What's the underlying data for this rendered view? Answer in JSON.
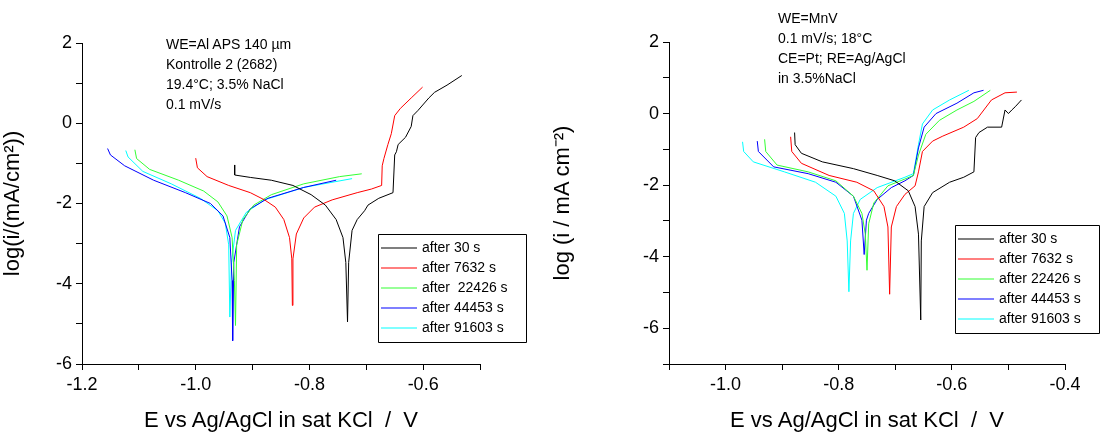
{
  "chart_data": [
    {
      "type": "line",
      "xlabel": "E vs Ag/AgCl in sat KCl  /  V",
      "ylabel": "log(i/(mA/cm²))",
      "xlim": [
        -1.2,
        -0.5
      ],
      "xticks": [
        -1.2,
        {
          "value": -1.1,
          "label": null
        },
        {
          "value": -1,
          "label": "-1.0"
        },
        {
          "value": -0.9,
          "label": null
        },
        -0.8,
        {
          "value": -0.7,
          "label": null
        },
        -0.6,
        {
          "value": -0.5,
          "label": null
        }
      ],
      "ylim": [
        -6,
        2
      ],
      "yticks": [
        -6,
        {
          "value": -5,
          "label": null
        },
        -4,
        {
          "value": -3,
          "label": null
        },
        -2,
        {
          "value": -1,
          "label": null
        },
        0,
        {
          "value": 1,
          "label": null
        },
        2
      ],
      "legend": "bottom right",
      "annotations": [
        "WE=Al APS 140 µm",
        "Kontrolle 2 (2682)",
        "19.4°C; 3.5% NaCl",
        "0.1 mV/s"
      ],
      "series": [
        {
          "name": "after 30 s",
          "color": "#000000",
          "x": [
            -0.9315,
            -0.9315,
            -0.904,
            -0.867,
            -0.829,
            -0.797,
            -0.772,
            -0.753,
            -0.741,
            -0.736,
            -0.733,
            -0.731,
            -0.725,
            -0.716,
            -0.703,
            -0.697,
            -0.678,
            -0.653,
            -0.65,
            -0.647,
            -0.644,
            -0.631,
            -0.621,
            -0.618,
            -0.609,
            -0.59,
            -0.58,
            -0.558,
            -0.532
          ],
          "values": [
            -1.04,
            -1.29,
            -1.35,
            -1.42,
            -1.55,
            -1.78,
            -2.04,
            -2.4,
            -2.85,
            -3.47,
            -4.95,
            -3.47,
            -2.67,
            -2.4,
            -2.18,
            -2.04,
            -1.87,
            -1.73,
            -0.79,
            -0.71,
            -0.53,
            -0.35,
            -0.08,
            0.19,
            0.32,
            0.63,
            0.77,
            0.95,
            1.19
          ]
        },
        {
          "name": "after 7632 s",
          "color": "#ff0000",
          "x": [
            -1.0,
            -0.997,
            -0.98,
            -0.942,
            -0.904,
            -0.879,
            -0.86,
            -0.845,
            -0.835,
            -0.831,
            -0.83,
            -0.829,
            -0.823,
            -0.81,
            -0.791,
            -0.76,
            -0.716,
            -0.691,
            -0.673,
            -0.672,
            -0.669,
            -0.662,
            -0.656,
            -0.65,
            -0.64,
            -0.621,
            -0.601
          ],
          "values": [
            -0.87,
            -1.11,
            -1.33,
            -1.55,
            -1.73,
            -1.91,
            -2.09,
            -2.4,
            -2.85,
            -3.38,
            -4.54,
            -3.38,
            -2.76,
            -2.36,
            -2.09,
            -1.91,
            -1.73,
            -1.64,
            -1.55,
            -1.06,
            -0.88,
            -0.53,
            -0.26,
            0.19,
            0.37,
            0.63,
            0.9
          ]
        },
        {
          "name": "after  22426 s",
          "color": "#33ff33",
          "x": [
            -1.107,
            -1.104,
            -1.081,
            -1.03,
            -0.986,
            -0.961,
            -0.945,
            -0.936,
            -0.932,
            -0.93,
            -0.928,
            -0.917,
            -0.898,
            -0.867,
            -0.81,
            -0.747,
            -0.708
          ],
          "values": [
            -0.66,
            -0.88,
            -1.15,
            -1.42,
            -1.69,
            -1.96,
            -2.31,
            -2.85,
            -3.92,
            -5.04,
            -3.03,
            -2.4,
            -2.04,
            -1.78,
            -1.51,
            -1.33,
            -1.26
          ]
        },
        {
          "name": "after 44453 s",
          "color": "#0000ff",
          "x": [
            -1.155,
            -1.15,
            -1.125,
            -1.074,
            -1.018,
            -0.974,
            -0.952,
            -0.94,
            -0.936,
            -0.935,
            -0.933,
            -0.923,
            -0.904,
            -0.873,
            -0.81,
            -0.753
          ],
          "values": [
            -0.63,
            -0.79,
            -1.06,
            -1.42,
            -1.73,
            -2.0,
            -2.31,
            -2.85,
            -3.92,
            -5.42,
            -3.47,
            -2.58,
            -2.13,
            -1.87,
            -1.6,
            -1.42
          ]
        },
        {
          "name": "after 91603 s",
          "color": "#00ffff",
          "x": [
            -1.123,
            -1.119,
            -1.093,
            -1.043,
            -0.992,
            -0.961,
            -0.948,
            -0.942,
            -0.94,
            -0.937,
            -0.93,
            -0.911,
            -0.879,
            -0.81,
            -0.725
          ],
          "values": [
            -0.68,
            -0.84,
            -1.2,
            -1.51,
            -1.87,
            -2.18,
            -2.49,
            -3.03,
            -4.83,
            -3.47,
            -2.67,
            -2.22,
            -1.91,
            -1.6,
            -1.38
          ]
        }
      ]
    },
    {
      "type": "line",
      "xlabel": "E vs Ag/AgCl in sat KCl  /  V",
      "ylabel": "log (i / mA cm⁻²)",
      "xlim": [
        -1.1,
        -0.4
      ],
      "xticks": [
        {
          "value": -1.1,
          "label": null
        },
        {
          "value": -1,
          "label": "-1.0"
        },
        {
          "value": -0.9,
          "label": null
        },
        -0.8,
        {
          "value": -0.7,
          "label": null
        },
        -0.6,
        {
          "value": -0.5,
          "label": null
        },
        -0.4
      ],
      "ylim": [
        -7,
        2
      ],
      "yticks": [
        {
          "value": -7,
          "label": null
        },
        -6,
        {
          "value": -5,
          "label": null
        },
        -4,
        {
          "value": -3,
          "label": null
        },
        -2,
        {
          "value": -1,
          "label": null
        },
        0,
        {
          "value": 1,
          "label": null
        },
        2
      ],
      "legend": "bottom right",
      "annotations": [
        "WE=MnV",
        "0.1 mV/s; 18°C",
        "CE=Pt; RE=Ag/AgCl",
        "in 3.5%NaCl"
      ],
      "series": [
        {
          "name": "after 30 s",
          "color": "#000000",
          "x": [
            -0.878,
            -0.877,
            -0.866,
            -0.829,
            -0.774,
            -0.732,
            -0.701,
            -0.677,
            -0.665,
            -0.659,
            -0.655,
            -0.654,
            -0.649,
            -0.634,
            -0.604,
            -0.579,
            -0.561,
            -0.558,
            -0.552,
            -0.537,
            -0.512,
            -0.506,
            -0.5,
            -0.494,
            -0.488,
            -0.477
          ],
          "values": [
            -0.53,
            -0.87,
            -1.11,
            -1.35,
            -1.54,
            -1.73,
            -1.88,
            -2.16,
            -2.6,
            -3.37,
            -5.77,
            -3.56,
            -2.6,
            -2.21,
            -1.92,
            -1.78,
            -1.63,
            -0.67,
            -0.53,
            -0.38,
            -0.38,
            0.1,
            0.0,
            0.1,
            0.19,
            0.38
          ]
        },
        {
          "name": "after 7632 s",
          "color": "#ff0000",
          "x": [
            -0.885,
            -0.883,
            -0.866,
            -0.817,
            -0.768,
            -0.738,
            -0.72,
            -0.713,
            -0.71,
            -0.707,
            -0.698,
            -0.683,
            -0.665,
            -0.659,
            -0.652,
            -0.634,
            -0.616,
            -0.579,
            -0.555,
            -0.53,
            -0.506,
            -0.485
          ],
          "values": [
            -0.65,
            -1.06,
            -1.39,
            -1.73,
            -1.92,
            -2.16,
            -2.6,
            -3.17,
            -5.05,
            -3.17,
            -2.6,
            -2.26,
            -2.02,
            -1.63,
            -1.06,
            -0.77,
            -0.63,
            -0.38,
            -0.14,
            0.38,
            0.58,
            0.6
          ]
        },
        {
          "name": "after 22426 s",
          "color": "#33ff33",
          "x": [
            -0.931,
            -0.929,
            -0.909,
            -0.854,
            -0.805,
            -0.774,
            -0.759,
            -0.753,
            -0.75,
            -0.747,
            -0.738,
            -0.713,
            -0.683,
            -0.668,
            -0.659,
            -0.646,
            -0.622,
            -0.591,
            -0.561,
            -0.532
          ],
          "values": [
            -0.72,
            -1.06,
            -1.44,
            -1.63,
            -1.88,
            -2.31,
            -2.79,
            -3.37,
            -4.38,
            -3.08,
            -2.5,
            -2.02,
            -1.83,
            -1.73,
            -1.16,
            -0.58,
            -0.19,
            0.1,
            0.34,
            0.65
          ]
        },
        {
          "name": "after 44453 s",
          "color": "#0000ff",
          "x": [
            -0.944,
            -0.942,
            -0.915,
            -0.854,
            -0.805,
            -0.774,
            -0.759,
            -0.755,
            -0.751,
            -0.747,
            -0.732,
            -0.707,
            -0.683,
            -0.668,
            -0.659,
            -0.649,
            -0.628,
            -0.591,
            -0.561,
            -0.544
          ],
          "values": [
            -0.77,
            -1.06,
            -1.49,
            -1.68,
            -1.92,
            -2.31,
            -2.98,
            -3.94,
            -2.98,
            -2.79,
            -2.4,
            -2.07,
            -1.88,
            -1.73,
            -0.96,
            -0.38,
            0.0,
            0.29,
            0.58,
            0.65
          ]
        },
        {
          "name": "after 91603 s",
          "color": "#00ffff",
          "x": [
            -0.97,
            -0.968,
            -0.951,
            -0.896,
            -0.841,
            -0.805,
            -0.79,
            -0.785,
            -0.782,
            -0.779,
            -0.774,
            -0.762,
            -0.732,
            -0.683,
            -0.668,
            -0.659,
            -0.652,
            -0.634,
            -0.604,
            -0.57
          ],
          "values": [
            -0.79,
            -1.06,
            -1.35,
            -1.63,
            -1.92,
            -2.31,
            -2.79,
            -3.56,
            -4.98,
            -3.56,
            -2.79,
            -2.4,
            -2.07,
            -1.78,
            -1.68,
            -0.87,
            -0.29,
            0.1,
            0.38,
            0.65
          ]
        }
      ]
    }
  ]
}
